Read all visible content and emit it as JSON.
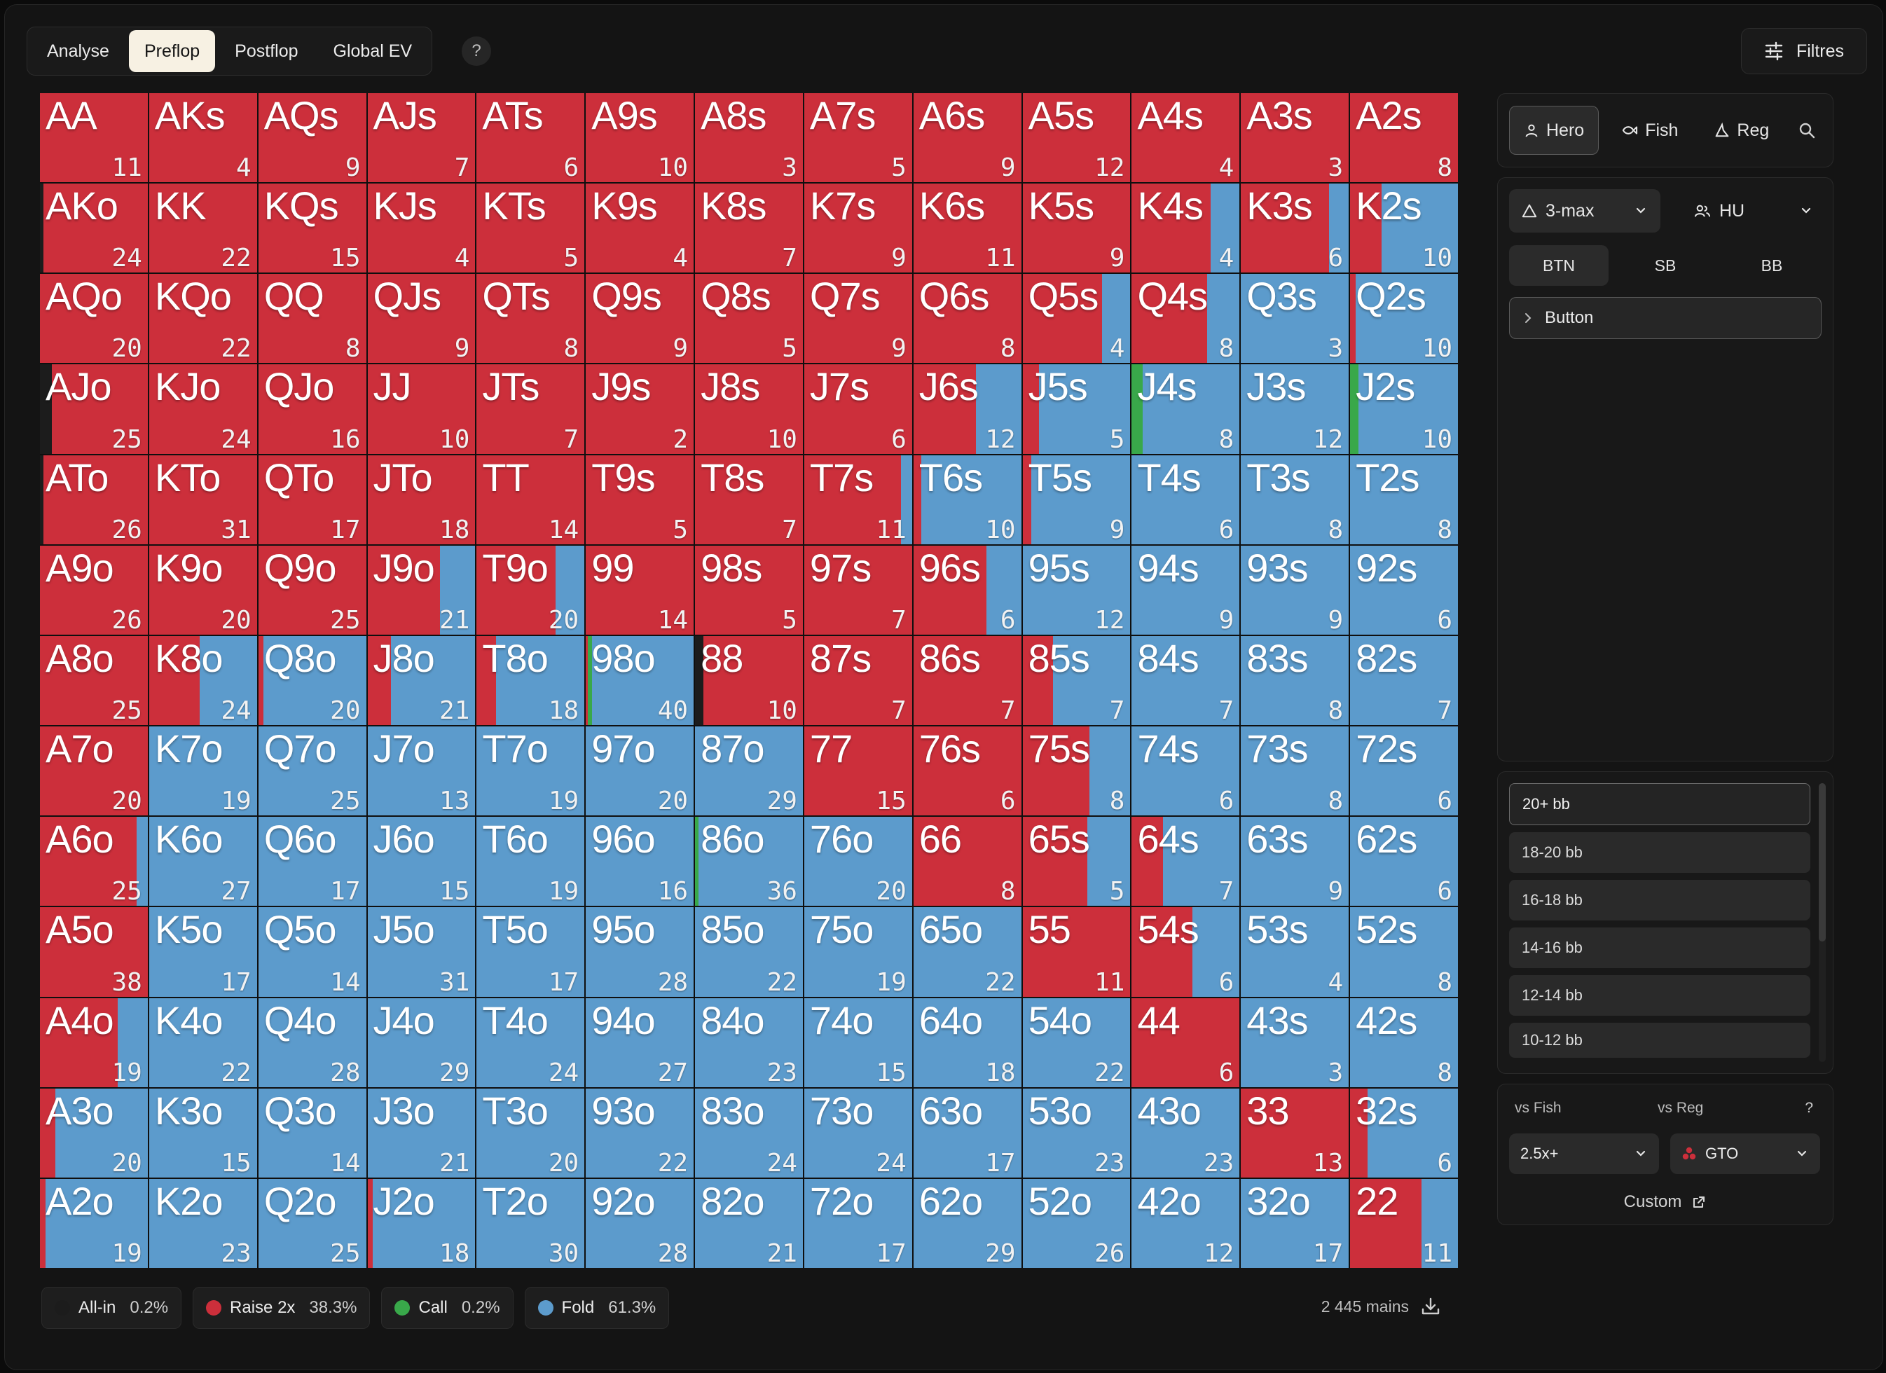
{
  "colors": {
    "raise": "#cc2f3b",
    "fold": "#5c9bcc",
    "call": "#39a84a",
    "allin": "#1c1c1c"
  },
  "top_tabs": [
    {
      "label": "Analyse",
      "active": false
    },
    {
      "label": "Preflop",
      "active": true
    },
    {
      "label": "Postflop",
      "active": false
    },
    {
      "label": "Global EV",
      "active": false
    }
  ],
  "help_label": "?",
  "filters_label": "Filtres",
  "hands": [
    [
      "AA",
      "AKs",
      "AQs",
      "AJs",
      "ATs",
      "A9s",
      "A8s",
      "A7s",
      "A6s",
      "A5s",
      "A4s",
      "A3s",
      "A2s"
    ],
    [
      "AKo",
      "KK",
      "KQs",
      "KJs",
      "KTs",
      "K9s",
      "K8s",
      "K7s",
      "K6s",
      "K5s",
      "K4s",
      "K3s",
      "K2s"
    ],
    [
      "AQo",
      "KQo",
      "QQ",
      "QJs",
      "QTs",
      "Q9s",
      "Q8s",
      "Q7s",
      "Q6s",
      "Q5s",
      "Q4s",
      "Q3s",
      "Q2s"
    ],
    [
      "AJo",
      "KJo",
      "QJo",
      "JJ",
      "JTs",
      "J9s",
      "J8s",
      "J7s",
      "J6s",
      "J5s",
      "J4s",
      "J3s",
      "J2s"
    ],
    [
      "ATo",
      "KTo",
      "QTo",
      "JTo",
      "TT",
      "T9s",
      "T8s",
      "T7s",
      "T6s",
      "T5s",
      "T4s",
      "T3s",
      "T2s"
    ],
    [
      "A9o",
      "K9o",
      "Q9o",
      "J9o",
      "T9o",
      "99",
      "98s",
      "97s",
      "96s",
      "95s",
      "94s",
      "93s",
      "92s"
    ],
    [
      "A8o",
      "K8o",
      "Q8o",
      "J8o",
      "T8o",
      "98o",
      "88",
      "87s",
      "86s",
      "85s",
      "84s",
      "83s",
      "82s"
    ],
    [
      "A7o",
      "K7o",
      "Q7o",
      "J7o",
      "T7o",
      "97o",
      "87o",
      "77",
      "76s",
      "75s",
      "74s",
      "73s",
      "72s"
    ],
    [
      "A6o",
      "K6o",
      "Q6o",
      "J6o",
      "T6o",
      "96o",
      "86o",
      "76o",
      "66",
      "65s",
      "64s",
      "63s",
      "62s"
    ],
    [
      "A5o",
      "K5o",
      "Q5o",
      "J5o",
      "T5o",
      "95o",
      "85o",
      "75o",
      "65o",
      "55",
      "54s",
      "53s",
      "52s"
    ],
    [
      "A4o",
      "K4o",
      "Q4o",
      "J4o",
      "T4o",
      "94o",
      "84o",
      "74o",
      "64o",
      "54o",
      "44",
      "43s",
      "42s"
    ],
    [
      "A3o",
      "K3o",
      "Q3o",
      "J3o",
      "T3o",
      "93o",
      "83o",
      "73o",
      "63o",
      "53o",
      "43o",
      "33",
      "32s"
    ],
    [
      "A2o",
      "K2o",
      "Q2o",
      "J2o",
      "T2o",
      "92o",
      "82o",
      "72o",
      "62o",
      "52o",
      "42o",
      "32o",
      "22"
    ]
  ],
  "counts": [
    [
      11,
      4,
      9,
      7,
      6,
      10,
      3,
      5,
      9,
      12,
      4,
      3,
      8
    ],
    [
      24,
      22,
      15,
      4,
      5,
      4,
      7,
      9,
      11,
      9,
      4,
      6,
      10
    ],
    [
      20,
      22,
      8,
      9,
      8,
      9,
      5,
      9,
      8,
      4,
      8,
      3,
      10
    ],
    [
      25,
      24,
      16,
      10,
      7,
      2,
      10,
      6,
      12,
      5,
      8,
      12,
      10
    ],
    [
      26,
      31,
      17,
      18,
      14,
      5,
      7,
      11,
      10,
      9,
      6,
      8,
      8
    ],
    [
      26,
      20,
      25,
      21,
      20,
      14,
      5,
      7,
      6,
      12,
      9,
      9,
      6
    ],
    [
      25,
      24,
      20,
      21,
      18,
      40,
      10,
      7,
      7,
      7,
      7,
      8,
      7
    ],
    [
      20,
      19,
      25,
      13,
      19,
      20,
      29,
      15,
      6,
      8,
      6,
      8,
      6
    ],
    [
      25,
      27,
      17,
      15,
      19,
      16,
      36,
      20,
      8,
      5,
      7,
      9,
      6
    ],
    [
      38,
      17,
      14,
      31,
      17,
      28,
      22,
      19,
      22,
      11,
      6,
      4,
      8
    ],
    [
      19,
      22,
      28,
      29,
      24,
      27,
      23,
      15,
      18,
      22,
      6,
      3,
      8
    ],
    [
      20,
      15,
      14,
      21,
      20,
      22,
      24,
      24,
      17,
      23,
      23,
      13,
      6
    ],
    [
      19,
      23,
      25,
      18,
      30,
      28,
      21,
      17,
      29,
      26,
      12,
      17,
      11
    ]
  ],
  "raise_frac": [
    [
      1,
      1,
      1,
      1,
      1,
      1,
      1,
      1,
      1,
      1,
      1,
      1,
      1
    ],
    [
      0.97,
      1,
      1,
      1,
      1,
      1,
      1,
      1,
      1,
      1,
      0.73,
      0.82,
      0.29
    ],
    [
      1,
      1,
      1,
      1,
      1,
      1,
      1,
      1,
      1,
      0.74,
      0.7,
      0,
      0.05
    ],
    [
      0.89,
      1,
      1,
      1,
      1,
      1,
      1,
      1,
      0.58,
      0.15,
      0,
      0,
      0
    ],
    [
      0.97,
      1,
      1,
      1,
      1,
      1,
      1,
      0.9,
      0.07,
      0.08,
      0,
      0,
      0
    ],
    [
      1,
      1,
      1,
      0.67,
      0.73,
      1,
      1,
      1,
      0.68,
      0,
      0,
      0,
      0
    ],
    [
      1,
      0.47,
      0.05,
      0.22,
      0.18,
      0.02,
      0.92,
      1,
      1,
      0.28,
      0,
      0,
      0
    ],
    [
      1,
      0,
      0,
      0,
      0,
      0,
      0,
      1,
      1,
      0.62,
      0,
      0,
      0
    ],
    [
      0.9,
      0,
      0,
      0,
      0,
      0,
      0,
      0,
      1,
      0.6,
      0.29,
      0,
      0
    ],
    [
      1,
      0,
      0,
      0,
      0,
      0,
      0,
      0,
      0,
      1,
      0.56,
      0,
      0
    ],
    [
      0.72,
      0,
      0,
      0,
      0,
      0,
      0,
      0,
      0,
      0,
      1,
      0,
      0
    ],
    [
      0.14,
      0,
      0,
      0,
      0,
      0,
      0,
      0,
      0,
      0,
      0,
      1,
      0.16
    ],
    [
      0.05,
      0,
      0,
      0.05,
      0,
      0,
      0,
      0,
      0,
      0,
      0,
      0,
      0.66
    ]
  ],
  "call_frac": [
    [
      0,
      0,
      0,
      0,
      0,
      0,
      0,
      0,
      0,
      0,
      0,
      0,
      0
    ],
    [
      0,
      0,
      0,
      0,
      0,
      0,
      0,
      0,
      0,
      0,
      0,
      0,
      0
    ],
    [
      0,
      0,
      0,
      0,
      0,
      0,
      0,
      0,
      0,
      0,
      0,
      0,
      0
    ],
    [
      0,
      0,
      0,
      0,
      0,
      0,
      0,
      0,
      0,
      0,
      0.1,
      0,
      0.08
    ],
    [
      0,
      0,
      0,
      0,
      0,
      0,
      0,
      0,
      0,
      0,
      0,
      0,
      0
    ],
    [
      0,
      0,
      0,
      0,
      0,
      0,
      0,
      0,
      0,
      0,
      0,
      0,
      0
    ],
    [
      0,
      0,
      0,
      0,
      0,
      0.04,
      0,
      0,
      0,
      0,
      0,
      0,
      0
    ],
    [
      0,
      0,
      0,
      0,
      0,
      0,
      0,
      0,
      0,
      0,
      0,
      0,
      0
    ],
    [
      0,
      0,
      0,
      0,
      0,
      0,
      0.03,
      0,
      0,
      0,
      0,
      0,
      0
    ],
    [
      0,
      0,
      0,
      0,
      0,
      0,
      0,
      0,
      0,
      0,
      0,
      0,
      0
    ],
    [
      0,
      0,
      0,
      0,
      0,
      0,
      0,
      0,
      0,
      0,
      0,
      0,
      0
    ],
    [
      0,
      0,
      0,
      0,
      0,
      0,
      0,
      0,
      0,
      0,
      0,
      0,
      0
    ],
    [
      0,
      0,
      0,
      0,
      0,
      0,
      0,
      0,
      0,
      0,
      0,
      0,
      0
    ]
  ],
  "allin_frac": [
    [
      0,
      0,
      0,
      0,
      0,
      0,
      0,
      0,
      0,
      0,
      0,
      0,
      0
    ],
    [
      0.03,
      0,
      0,
      0,
      0,
      0,
      0,
      0,
      0,
      0,
      0,
      0,
      0
    ],
    [
      0,
      0,
      0,
      0,
      0,
      0,
      0,
      0,
      0,
      0,
      0,
      0,
      0
    ],
    [
      0.11,
      0,
      0,
      0,
      0,
      0,
      0,
      0,
      0,
      0,
      0,
      0,
      0
    ],
    [
      0.03,
      0,
      0,
      0,
      0,
      0,
      0,
      0,
      0,
      0,
      0,
      0,
      0
    ],
    [
      0,
      0,
      0,
      0,
      0,
      0,
      0,
      0,
      0,
      0,
      0,
      0,
      0
    ],
    [
      0,
      0,
      0,
      0,
      0,
      0,
      0.08,
      0,
      0,
      0,
      0,
      0,
      0
    ],
    [
      0,
      0,
      0,
      0,
      0,
      0,
      0,
      0,
      0,
      0,
      0,
      0,
      0
    ],
    [
      0,
      0,
      0,
      0,
      0,
      0,
      0,
      0,
      0,
      0,
      0,
      0,
      0
    ],
    [
      0,
      0,
      0,
      0,
      0,
      0,
      0,
      0,
      0,
      0,
      0,
      0,
      0
    ],
    [
      0,
      0,
      0,
      0,
      0,
      0,
      0,
      0,
      0,
      0,
      0,
      0,
      0
    ],
    [
      0,
      0,
      0,
      0,
      0,
      0,
      0,
      0,
      0,
      0,
      0,
      0,
      0
    ],
    [
      0,
      0,
      0,
      0,
      0,
      0,
      0,
      0,
      0,
      0,
      0,
      0,
      0
    ]
  ],
  "legend": [
    {
      "label": "All-in",
      "pct": "0.2%",
      "color": "#1c1c1c"
    },
    {
      "label": "Raise 2x",
      "pct": "38.3%",
      "color": "#cc2f3b"
    },
    {
      "label": "Call",
      "pct": "0.2%",
      "color": "#39a84a"
    },
    {
      "label": "Fold",
      "pct": "61.3%",
      "color": "#5c9bcc"
    }
  ],
  "mains_label": "2 445 mains",
  "opponents": [
    {
      "label": "Hero",
      "icon": "user-icon",
      "active": true
    },
    {
      "label": "Fish",
      "icon": "fish-icon",
      "active": false
    },
    {
      "label": "Reg",
      "icon": "shark-icon",
      "active": false
    }
  ],
  "format_select": "3-max",
  "table_select": "HU",
  "positions": [
    {
      "label": "BTN",
      "active": true
    },
    {
      "label": "SB",
      "active": false
    },
    {
      "label": "BB",
      "active": false
    }
  ],
  "action_node": "Button",
  "stacks": [
    {
      "label": "20+ bb",
      "active": true
    },
    {
      "label": "18-20 bb",
      "active": false
    },
    {
      "label": "16-18 bb",
      "active": false
    },
    {
      "label": "14-16 bb",
      "active": false
    },
    {
      "label": "12-14 bb",
      "active": false
    },
    {
      "label": "10-12 bb",
      "active": false
    }
  ],
  "vs_fish_label": "vs Fish",
  "vs_reg_label": "vs Reg",
  "vs_help": "?",
  "vs_fish_value": "2.5x+",
  "vs_reg_value": "GTO",
  "custom_label": "Custom"
}
